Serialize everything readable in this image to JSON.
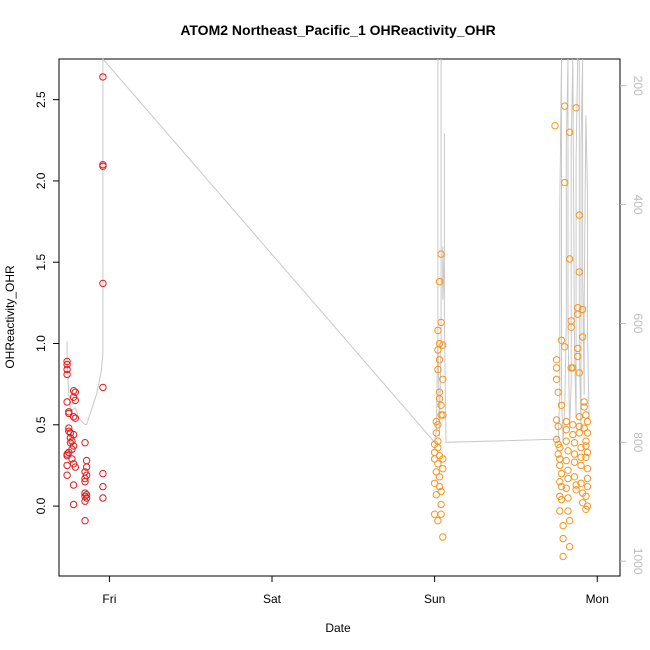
{
  "chart_data": {
    "type": "scatter",
    "title": "ATOM2 Northeast_Pacific_1 OHReactivity_OHR",
    "xlabel": "Date",
    "ylabel": "OHReactivity_OHR",
    "xlim": [
      -0.31,
      3.14
    ],
    "ylim": [
      -0.43,
      2.75
    ],
    "x_tick_values": [
      0,
      1,
      2,
      3
    ],
    "x_tick_labels": [
      "Fri",
      "Sat",
      "Sun",
      "Mon"
    ],
    "y_tick_values": [
      0.0,
      0.5,
      1.0,
      1.5,
      2.0,
      2.5
    ],
    "y_tick_labels": [
      "0.0",
      "0.5",
      "1.0",
      "1.5",
      "2.0",
      "2.5"
    ],
    "secondary_axis": {
      "side": "right",
      "reversed": true,
      "lim": [
        1025,
        155
      ],
      "tick_values": [
        200,
        400,
        600,
        800,
        1000
      ],
      "tick_labels": [
        "200",
        "400",
        "600",
        "800",
        "1000"
      ],
      "color": "#bdbdbd"
    },
    "colors": {
      "series_red": "#e41a1c",
      "series_orange": "#f7941d",
      "line": "#c8c8c8"
    },
    "series": [
      {
        "color": "#e41a1c",
        "points": [
          [
            -0.26,
            0.89
          ],
          [
            -0.26,
            0.87
          ],
          [
            -0.26,
            0.84
          ],
          [
            -0.26,
            0.81
          ],
          [
            -0.26,
            0.64
          ],
          [
            -0.25,
            0.58
          ],
          [
            -0.25,
            0.57
          ],
          [
            -0.26,
            0.32
          ],
          [
            -0.26,
            0.31
          ],
          [
            -0.25,
            0.33
          ],
          [
            -0.26,
            0.25
          ],
          [
            -0.26,
            0.19
          ],
          [
            -0.25,
            0.48
          ],
          [
            -0.25,
            0.46
          ],
          [
            -0.24,
            0.45
          ],
          [
            -0.24,
            0.42
          ],
          [
            -0.24,
            0.39
          ],
          [
            -0.23,
            0.35
          ],
          [
            -0.22,
            0.71
          ],
          [
            -0.22,
            0.67
          ],
          [
            -0.21,
            0.7
          ],
          [
            -0.21,
            0.65
          ],
          [
            -0.22,
            0.55
          ],
          [
            -0.21,
            0.54
          ],
          [
            -0.22,
            0.44
          ],
          [
            -0.23,
            0.4
          ],
          [
            -0.22,
            0.37
          ],
          [
            -0.23,
            0.29
          ],
          [
            -0.22,
            0.26
          ],
          [
            -0.21,
            0.24
          ],
          [
            -0.22,
            0.13
          ],
          [
            -0.22,
            0.01
          ],
          [
            -0.15,
            0.39
          ],
          [
            -0.14,
            0.28
          ],
          [
            -0.14,
            0.24
          ],
          [
            -0.15,
            0.21
          ],
          [
            -0.14,
            0.19
          ],
          [
            -0.15,
            0.17
          ],
          [
            -0.15,
            0.15
          ],
          [
            -0.15,
            0.08
          ],
          [
            -0.14,
            0.07
          ],
          [
            -0.15,
            0.06
          ],
          [
            -0.14,
            0.05
          ],
          [
            -0.15,
            0.03
          ],
          [
            -0.15,
            -0.09
          ],
          [
            -0.04,
            2.64
          ],
          [
            -0.04,
            2.1
          ],
          [
            -0.04,
            2.09
          ],
          [
            -0.04,
            1.37
          ],
          [
            -0.04,
            0.73
          ],
          [
            -0.04,
            0.2
          ],
          [
            -0.04,
            0.12
          ],
          [
            -0.04,
            0.05
          ]
        ]
      },
      {
        "color": "#f7941d",
        "points": [
          [
            2.0,
            0.38
          ],
          [
            2.0,
            0.33
          ],
          [
            2.0,
            0.29
          ],
          [
            2.01,
            0.21
          ],
          [
            2.0,
            0.14
          ],
          [
            2.01,
            0.07
          ],
          [
            2.0,
            -0.05
          ],
          [
            2.02,
            -0.09
          ],
          [
            2.01,
            0.52
          ],
          [
            2.02,
            0.5
          ],
          [
            2.01,
            0.45
          ],
          [
            2.02,
            0.4
          ],
          [
            2.02,
            0.36
          ],
          [
            2.03,
            0.31
          ],
          [
            2.02,
            0.26
          ],
          [
            2.03,
            0.18
          ],
          [
            2.02,
            1.08
          ],
          [
            2.03,
            1.0
          ],
          [
            2.02,
            0.96
          ],
          [
            2.03,
            0.9
          ],
          [
            2.02,
            0.84
          ],
          [
            2.03,
            0.7
          ],
          [
            2.03,
            0.66
          ],
          [
            2.04,
            0.62
          ],
          [
            2.04,
            0.56
          ],
          [
            2.03,
            0.12
          ],
          [
            2.04,
            0.09
          ],
          [
            2.04,
            0.01
          ],
          [
            2.03,
            1.38
          ],
          [
            2.04,
            1.55
          ],
          [
            2.04,
            1.13
          ],
          [
            2.05,
            0.99
          ],
          [
            2.05,
            0.78
          ],
          [
            2.05,
            0.56
          ],
          [
            2.05,
            0.29
          ],
          [
            2.05,
            0.23
          ],
          [
            2.05,
            -0.19
          ],
          [
            2.04,
            -0.05
          ],
          [
            2.74,
            2.34
          ],
          [
            2.75,
            0.9
          ],
          [
            2.75,
            0.85
          ],
          [
            2.75,
            0.78
          ],
          [
            2.76,
            0.7
          ],
          [
            2.75,
            0.53
          ],
          [
            2.76,
            0.49
          ],
          [
            2.75,
            0.41
          ],
          [
            2.76,
            0.38
          ],
          [
            2.77,
            0.36
          ],
          [
            2.76,
            0.32
          ],
          [
            2.77,
            0.29
          ],
          [
            2.77,
            0.25
          ],
          [
            2.78,
            0.2
          ],
          [
            2.77,
            0.15
          ],
          [
            2.78,
            0.12
          ],
          [
            2.77,
            0.06
          ],
          [
            2.78,
            0.04
          ],
          [
            2.77,
            -0.03
          ],
          [
            2.79,
            -0.12
          ],
          [
            2.79,
            -0.2
          ],
          [
            2.79,
            -0.31
          ],
          [
            2.78,
            1.02
          ],
          [
            2.78,
            0.62
          ],
          [
            2.8,
            2.46
          ],
          [
            2.8,
            1.99
          ],
          [
            2.8,
            0.98
          ],
          [
            2.81,
            0.52
          ],
          [
            2.81,
            0.47
          ],
          [
            2.81,
            0.4
          ],
          [
            2.82,
            0.34
          ],
          [
            2.81,
            0.28
          ],
          [
            2.82,
            0.22
          ],
          [
            2.82,
            0.17
          ],
          [
            2.81,
            0.11
          ],
          [
            2.82,
            0.05
          ],
          [
            2.82,
            -0.03
          ],
          [
            2.83,
            -0.09
          ],
          [
            2.83,
            -0.25
          ],
          [
            2.83,
            2.3
          ],
          [
            2.83,
            1.52
          ],
          [
            2.84,
            1.14
          ],
          [
            2.84,
            1.1
          ],
          [
            2.84,
            0.85
          ],
          [
            2.85,
            0.85
          ],
          [
            2.85,
            0.5
          ],
          [
            2.85,
            0.44
          ],
          [
            2.86,
            0.39
          ],
          [
            2.86,
            0.32
          ],
          [
            2.86,
            0.27
          ],
          [
            2.86,
            0.18
          ],
          [
            2.87,
            0.13
          ],
          [
            2.87,
            0.1
          ],
          [
            2.87,
            2.45
          ],
          [
            2.88,
            1.22
          ],
          [
            2.88,
            1.18
          ],
          [
            2.88,
            0.97
          ],
          [
            2.88,
            0.92
          ],
          [
            2.89,
            0.82
          ],
          [
            2.89,
            0.55
          ],
          [
            2.89,
            0.49
          ],
          [
            2.89,
            0.45
          ],
          [
            2.9,
            0.36
          ],
          [
            2.9,
            0.3
          ],
          [
            2.9,
            0.25
          ],
          [
            2.9,
            0.14
          ],
          [
            2.91,
            0.08
          ],
          [
            2.91,
            0.02
          ],
          [
            2.89,
            1.79
          ],
          [
            2.89,
            1.44
          ],
          [
            2.91,
            1.21
          ],
          [
            2.91,
            1.04
          ],
          [
            2.92,
            0.61
          ],
          [
            2.92,
            0.48
          ],
          [
            2.93,
            0.4
          ],
          [
            2.93,
            0.37
          ],
          [
            2.94,
            0.33
          ],
          [
            2.93,
            0.3
          ],
          [
            2.94,
            0.23
          ],
          [
            2.94,
            0.17
          ],
          [
            2.94,
            0.12
          ],
          [
            2.93,
            0.06
          ],
          [
            2.94,
            0.0
          ],
          [
            2.93,
            -0.02
          ],
          [
            2.92,
            0.64
          ],
          [
            2.93,
            0.56
          ],
          [
            2.94,
            0.52
          ],
          [
            2.94,
            0.45
          ]
        ]
      }
    ],
    "line": {
      "color": "#c8c8c8",
      "axis": "secondary",
      "points": [
        [
          -0.26,
          630
        ],
        [
          -0.26,
          660
        ],
        [
          -0.25,
          720
        ],
        [
          -0.24,
          745
        ],
        [
          -0.22,
          745
        ],
        [
          -0.21,
          742
        ],
        [
          -0.19,
          758
        ],
        [
          -0.17,
          765
        ],
        [
          -0.15,
          770
        ],
        [
          -0.14,
          770
        ],
        [
          -0.08,
          720
        ],
        [
          -0.05,
          680
        ],
        [
          -0.04,
          650
        ],
        [
          -0.04,
          300
        ],
        [
          -0.04,
          155
        ],
        [
          2.0,
          800
        ],
        [
          2.01,
          780
        ],
        [
          2.02,
          620
        ],
        [
          2.02,
          155
        ],
        [
          2.02,
          620
        ],
        [
          2.03,
          790
        ],
        [
          2.04,
          620
        ],
        [
          2.04,
          155
        ],
        [
          2.04,
          520
        ],
        [
          2.05,
          540
        ],
        [
          2.05,
          470
        ],
        [
          2.05,
          560
        ],
        [
          2.06,
          480
        ],
        [
          2.06,
          280
        ],
        [
          2.06,
          600
        ],
        [
          2.07,
          800
        ],
        [
          2.74,
          795
        ],
        [
          2.76,
          795
        ],
        [
          2.77,
          720
        ],
        [
          2.77,
          400
        ],
        [
          2.78,
          155
        ],
        [
          2.78,
          720
        ],
        [
          2.79,
          800
        ],
        [
          2.8,
          740
        ],
        [
          2.81,
          600
        ],
        [
          2.81,
          300
        ],
        [
          2.82,
          155
        ],
        [
          2.82,
          600
        ],
        [
          2.83,
          780
        ],
        [
          2.84,
          700
        ],
        [
          2.84,
          300
        ],
        [
          2.85,
          155
        ],
        [
          2.86,
          640
        ],
        [
          2.87,
          760
        ],
        [
          2.87,
          320
        ],
        [
          2.88,
          155
        ],
        [
          2.89,
          160
        ],
        [
          2.89,
          640
        ],
        [
          2.9,
          780
        ],
        [
          2.9,
          300
        ],
        [
          2.91,
          155
        ],
        [
          2.91,
          520
        ],
        [
          2.92,
          720
        ],
        [
          2.92,
          560
        ],
        [
          2.93,
          250
        ],
        [
          2.94,
          380
        ],
        [
          2.94,
          620
        ],
        [
          2.95,
          760
        ]
      ]
    }
  }
}
